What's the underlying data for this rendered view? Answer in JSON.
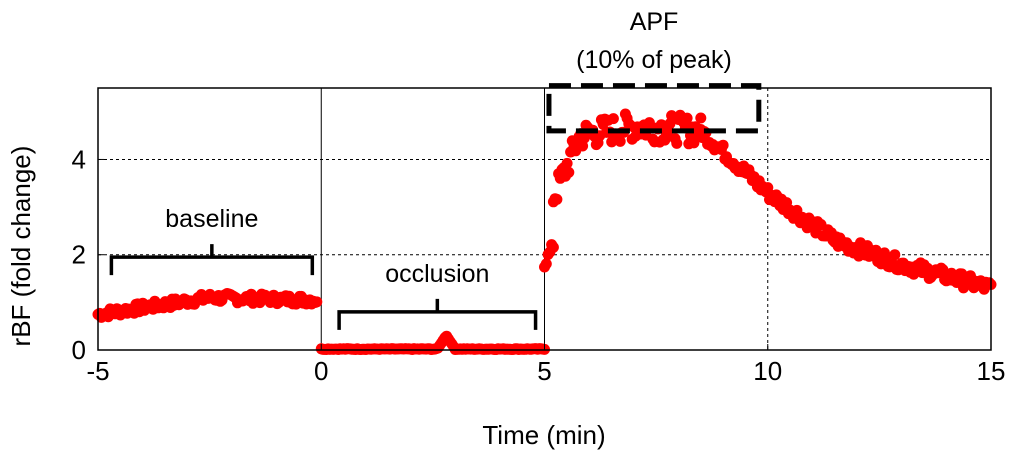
{
  "chart_data": {
    "type": "scatter",
    "xlabel": "Time (min)",
    "ylabel": "rBF (fold change)",
    "xlim": [
      -5,
      15
    ],
    "ylim": [
      0,
      5.5
    ],
    "xticks": [
      -5,
      0,
      5,
      10,
      15
    ],
    "yticks": [
      0,
      2,
      4
    ],
    "x_tick_labels": [
      "-5",
      "0",
      "5",
      "10",
      "15"
    ],
    "y_tick_labels": [
      "0",
      "2",
      "4"
    ],
    "grid": "dashed",
    "solid_vlines": [
      0,
      5
    ],
    "marker_color": "#ff0000",
    "annotations": {
      "baseline": {
        "text": "baseline",
        "x_range": [
          -4.7,
          -0.2
        ],
        "y": 1.95
      },
      "occlusion": {
        "text": "occlusion",
        "x_range": [
          0.4,
          4.8
        ],
        "y": 0.8
      },
      "apf_title": "APF",
      "apf_subtitle": "(10% of peak)",
      "apf_box": {
        "x_range": [
          5.1,
          9.8
        ],
        "y_range": [
          4.6,
          5.55
        ]
      }
    },
    "series": [
      {
        "segments": [
          {
            "x_range": [
              -5,
              -0.1
            ],
            "trend": [
              [
                -5,
                0.75
              ],
              [
                -2.5,
                1.1
              ],
              [
                -0.1,
                1.05
              ]
            ],
            "noise": 0.1
          },
          {
            "x_range": [
              0,
              5
            ],
            "trend": [
              [
                0,
                0.02
              ],
              [
                5,
                0.02
              ]
            ],
            "noise": 0.01,
            "bump": {
              "x": 2.8,
              "y": 0.28
            }
          },
          {
            "x_range": [
              5,
              5.2
            ],
            "trend": [
              [
                5,
                1.8
              ],
              [
                5.2,
                2.2
              ]
            ],
            "noise": 0.1
          },
          {
            "x_range": [
              5.2,
              8.5
            ],
            "trend": [
              [
                5.2,
                3.2
              ],
              [
                5.8,
                4.5
              ],
              [
                7,
                4.7
              ],
              [
                8.5,
                4.6
              ]
            ],
            "noise": 0.3
          },
          {
            "x_range": [
              8.5,
              15
            ],
            "trend": [
              [
                8.5,
                4.6
              ],
              [
                10,
                3.3
              ],
              [
                11.5,
                2.3
              ],
              [
                13,
                1.8
              ],
              [
                15,
                1.3
              ]
            ],
            "noise": 0.15
          }
        ]
      }
    ]
  }
}
